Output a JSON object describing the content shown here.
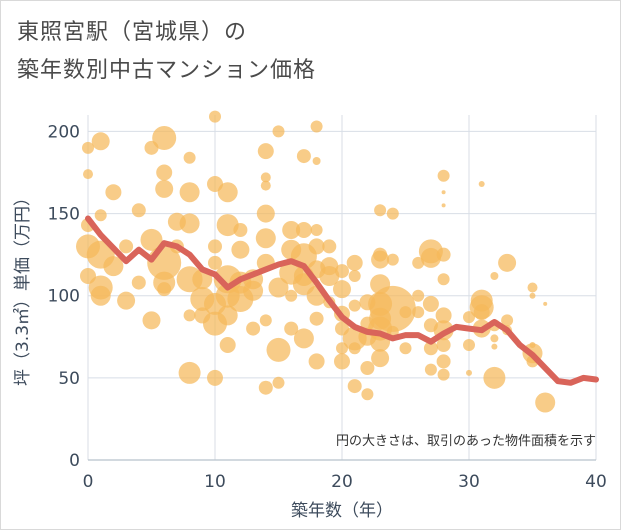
{
  "title_line1": "東照宮駅（宮城県）の",
  "title_line2": "築年数別中古マンション価格",
  "note": "円の大きさは、取引のあった物件面積を示す",
  "colors": {
    "bubble": "#f5b85a",
    "line": "#d9645a",
    "grid": "#d8dee6",
    "text": "#3d4b5c"
  },
  "chart_data": {
    "type": "scatter",
    "xlabel": "築年数（年）",
    "ylabel": "坪（3.3㎡）単価（万円）",
    "xlim": [
      0,
      40
    ],
    "ylim": [
      0,
      210
    ],
    "xticks": [
      "0",
      "10",
      "20",
      "30",
      "40"
    ],
    "yticks": [
      "0",
      "50",
      "100",
      "150",
      "200"
    ],
    "bubbles": [
      [
        0,
        190,
        6
      ],
      [
        1,
        194,
        9
      ],
      [
        0,
        174,
        5
      ],
      [
        1,
        149,
        6
      ],
      [
        0,
        143,
        7
      ],
      [
        0,
        130,
        12
      ],
      [
        1,
        125,
        14
      ],
      [
        1,
        105,
        12
      ],
      [
        1,
        100,
        10
      ],
      [
        0,
        112,
        8
      ],
      [
        2,
        163,
        8
      ],
      [
        2,
        118,
        10
      ],
      [
        3,
        97,
        9
      ],
      [
        3,
        130,
        7
      ],
      [
        4,
        152,
        7
      ],
      [
        4,
        108,
        7
      ],
      [
        5,
        190,
        7
      ],
      [
        5,
        134,
        11
      ],
      [
        5,
        85,
        9
      ],
      [
        6,
        196,
        12
      ],
      [
        6,
        175,
        8
      ],
      [
        6,
        165,
        9
      ],
      [
        6,
        120,
        17
      ],
      [
        6,
        108,
        11
      ],
      [
        6,
        104,
        7
      ],
      [
        7,
        130,
        7
      ],
      [
        7,
        145,
        9
      ],
      [
        8,
        184,
        6
      ],
      [
        8,
        163,
        10
      ],
      [
        8,
        144,
        10
      ],
      [
        8,
        110,
        13
      ],
      [
        8,
        88,
        6
      ],
      [
        8,
        53,
        11
      ],
      [
        9,
        98,
        12
      ],
      [
        9,
        88,
        8
      ],
      [
        9,
        110,
        10
      ],
      [
        10,
        209,
        6
      ],
      [
        10,
        168,
        8
      ],
      [
        10,
        130,
        7
      ],
      [
        10,
        120,
        7
      ],
      [
        10,
        95,
        11
      ],
      [
        10,
        83,
        12
      ],
      [
        10,
        50,
        8
      ],
      [
        11,
        163,
        10
      ],
      [
        11,
        143,
        11
      ],
      [
        11,
        110,
        14
      ],
      [
        11,
        100,
        12
      ],
      [
        11,
        88,
        10
      ],
      [
        11,
        70,
        8
      ],
      [
        12,
        140,
        7
      ],
      [
        12,
        128,
        9
      ],
      [
        12,
        108,
        11
      ],
      [
        12,
        98,
        13
      ],
      [
        13,
        110,
        10
      ],
      [
        13,
        103,
        10
      ],
      [
        13,
        80,
        7
      ],
      [
        14,
        188,
        8
      ],
      [
        14,
        172,
        5
      ],
      [
        14,
        167,
        5
      ],
      [
        14,
        150,
        9
      ],
      [
        14,
        135,
        10
      ],
      [
        14,
        120,
        9
      ],
      [
        14,
        85,
        6
      ],
      [
        14,
        44,
        7
      ],
      [
        15,
        200,
        6
      ],
      [
        15,
        105,
        10
      ],
      [
        15,
        67,
        12
      ],
      [
        15,
        47,
        6
      ],
      [
        16,
        140,
        9
      ],
      [
        16,
        128,
        10
      ],
      [
        16,
        114,
        12
      ],
      [
        16,
        100,
        6
      ],
      [
        16,
        80,
        7
      ],
      [
        17,
        185,
        7
      ],
      [
        17,
        140,
        8
      ],
      [
        17,
        124,
        13
      ],
      [
        17,
        112,
        10
      ],
      [
        17,
        107,
        11
      ],
      [
        17,
        74,
        10
      ],
      [
        18,
        203,
        6
      ],
      [
        18,
        182,
        4
      ],
      [
        18,
        140,
        6
      ],
      [
        18,
        130,
        8
      ],
      [
        18,
        116,
        9
      ],
      [
        18,
        100,
        10
      ],
      [
        18,
        86,
        7
      ],
      [
        18,
        60,
        8
      ],
      [
        19,
        130,
        7
      ],
      [
        19,
        118,
        9
      ],
      [
        19,
        112,
        10
      ],
      [
        19,
        96,
        6
      ],
      [
        20,
        115,
        7
      ],
      [
        20,
        104,
        9
      ],
      [
        20,
        89,
        8
      ],
      [
        20,
        80,
        7
      ],
      [
        20,
        68,
        6
      ],
      [
        20,
        60,
        8
      ],
      [
        21,
        120,
        8
      ],
      [
        21,
        112,
        6
      ],
      [
        21,
        94,
        6
      ],
      [
        21,
        74,
        12
      ],
      [
        21,
        68,
        6
      ],
      [
        21,
        45,
        7
      ],
      [
        22,
        96,
        8
      ],
      [
        22,
        83,
        7
      ],
      [
        22,
        75,
        9
      ],
      [
        22,
        56,
        7
      ],
      [
        22,
        40,
        6
      ],
      [
        23,
        152,
        6
      ],
      [
        23,
        125,
        7
      ],
      [
        23,
        122,
        9
      ],
      [
        23,
        107,
        10
      ],
      [
        23,
        95,
        12
      ],
      [
        23,
        86,
        11
      ],
      [
        23,
        80,
        12
      ],
      [
        23,
        72,
        10
      ],
      [
        23,
        62,
        9
      ],
      [
        24,
        150,
        6
      ],
      [
        24,
        122,
        6
      ],
      [
        24,
        92,
        23
      ],
      [
        24,
        78,
        6
      ],
      [
        25,
        90,
        6
      ],
      [
        25,
        68,
        6
      ],
      [
        26,
        120,
        6
      ],
      [
        26,
        100,
        6
      ],
      [
        26,
        90,
        6
      ],
      [
        27,
        127,
        12
      ],
      [
        27,
        123,
        10
      ],
      [
        27,
        95,
        8
      ],
      [
        27,
        82,
        7
      ],
      [
        27,
        68,
        7
      ],
      [
        27,
        55,
        6
      ],
      [
        28,
        173,
        6
      ],
      [
        28,
        163,
        2
      ],
      [
        28,
        155,
        2
      ],
      [
        28,
        125,
        7
      ],
      [
        28,
        110,
        6
      ],
      [
        28,
        88,
        8
      ],
      [
        28,
        79,
        10
      ],
      [
        28,
        70,
        7
      ],
      [
        28,
        60,
        7
      ],
      [
        28,
        52,
        6
      ],
      [
        30,
        87,
        6
      ],
      [
        30,
        70,
        6
      ],
      [
        30,
        53,
        3
      ],
      [
        31,
        168,
        3
      ],
      [
        31,
        97,
        11
      ],
      [
        31,
        93,
        12
      ],
      [
        31,
        90,
        8
      ],
      [
        31,
        80,
        9
      ],
      [
        32,
        112,
        4
      ],
      [
        32,
        74,
        4
      ],
      [
        32,
        69,
        3
      ],
      [
        32,
        82,
        6
      ],
      [
        32,
        50,
        11
      ],
      [
        33,
        120,
        9
      ],
      [
        33,
        85,
        6
      ],
      [
        33,
        79,
        5
      ],
      [
        35,
        105,
        5
      ],
      [
        35,
        100,
        3
      ],
      [
        35,
        70,
        3
      ],
      [
        35,
        65,
        10
      ],
      [
        35,
        60,
        6
      ],
      [
        36,
        35,
        10
      ],
      [
        36,
        95,
        2
      ]
    ],
    "trend": [
      [
        0,
        147
      ],
      [
        1,
        137
      ],
      [
        2,
        129
      ],
      [
        3,
        121
      ],
      [
        4,
        128
      ],
      [
        5,
        122
      ],
      [
        6,
        132
      ],
      [
        7,
        130
      ],
      [
        8,
        125
      ],
      [
        9,
        116
      ],
      [
        10,
        113
      ],
      [
        11,
        105
      ],
      [
        12,
        110
      ],
      [
        13,
        113
      ],
      [
        14,
        116
      ],
      [
        15,
        119
      ],
      [
        16,
        121
      ],
      [
        17,
        118
      ],
      [
        18,
        108
      ],
      [
        19,
        97
      ],
      [
        20,
        87
      ],
      [
        21,
        81
      ],
      [
        22,
        78
      ],
      [
        23,
        77
      ],
      [
        24,
        74
      ],
      [
        25,
        76
      ],
      [
        26,
        76
      ],
      [
        27,
        72
      ],
      [
        28,
        77
      ],
      [
        29,
        81
      ],
      [
        30,
        80
      ],
      [
        31,
        79
      ],
      [
        32,
        84
      ],
      [
        33,
        79
      ],
      [
        34,
        70
      ],
      [
        35,
        64
      ],
      [
        36,
        56
      ],
      [
        37,
        48
      ],
      [
        38,
        47
      ],
      [
        39,
        50
      ],
      [
        40,
        49
      ]
    ]
  }
}
